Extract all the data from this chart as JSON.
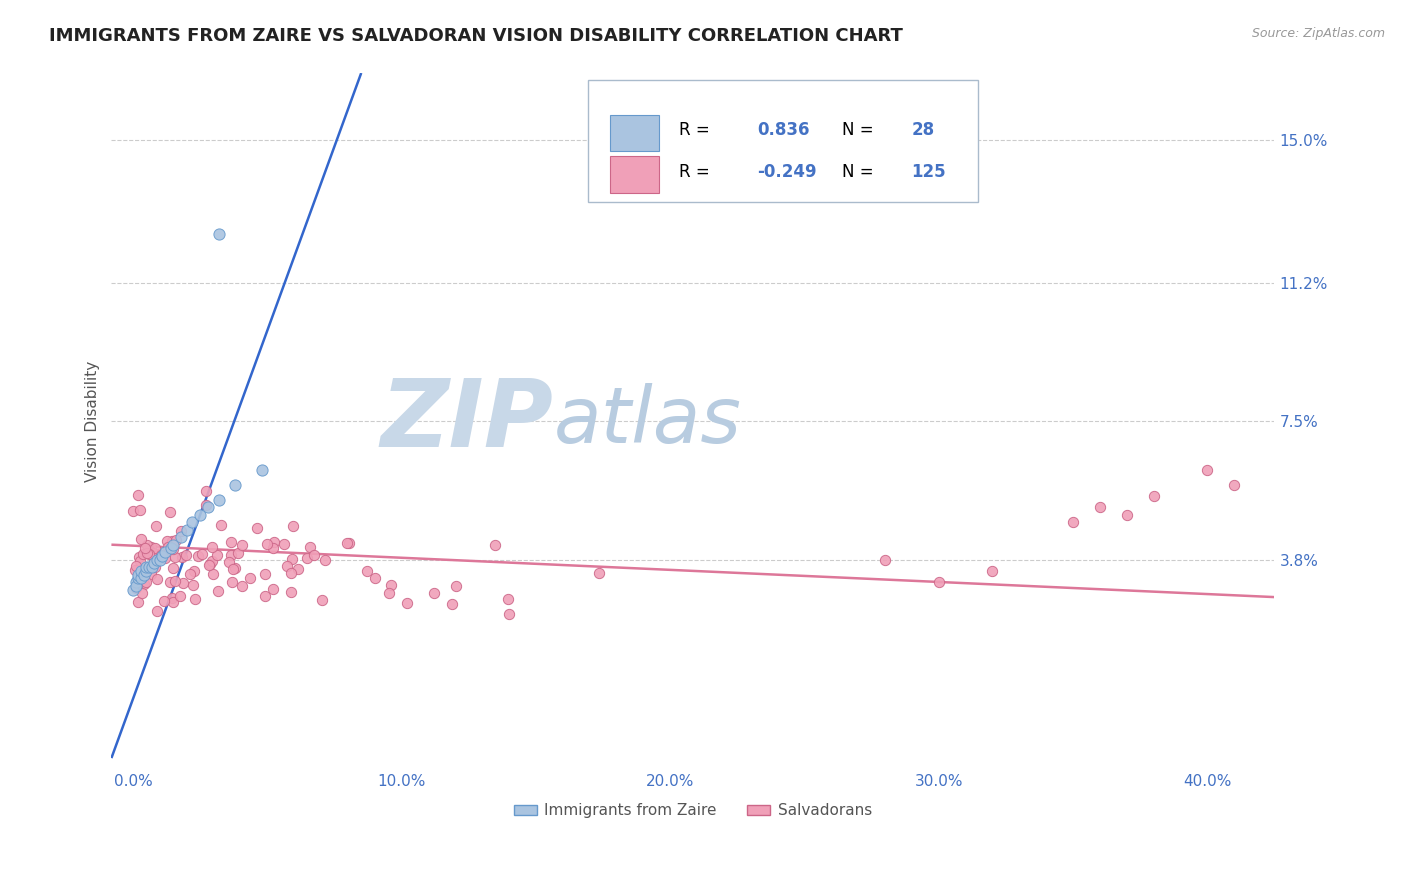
{
  "title": "IMMIGRANTS FROM ZAIRE VS SALVADORAN VISION DISABILITY CORRELATION CHART",
  "source": "Source: ZipAtlas.com",
  "ylabel": "Vision Disability",
  "x_ticks": [
    "0.0%",
    "10.0%",
    "20.0%",
    "30.0%",
    "40.0%"
  ],
  "x_tick_vals": [
    0.0,
    0.1,
    0.2,
    0.3,
    0.4
  ],
  "y_ticks": [
    "3.8%",
    "7.5%",
    "11.2%",
    "15.0%"
  ],
  "y_tick_vals": [
    0.038,
    0.075,
    0.112,
    0.15
  ],
  "xlim": [
    -0.008,
    0.425
  ],
  "ylim": [
    -0.018,
    0.168
  ],
  "zaire_color": "#aac4e0",
  "zaire_edge": "#6699cc",
  "salvadoran_color": "#f0a0b8",
  "salvadoran_edge": "#cc6688",
  "line_blue": "#3366cc",
  "line_pink": "#dd7799",
  "watermark_zip_color": "#c8d8e8",
  "watermark_atlas_color": "#b8cce0",
  "background": "#ffffff",
  "title_color": "#222222",
  "axis_label_color": "#555555",
  "tick_color": "#4472c4",
  "grid_color": "#cccccc",
  "legend_r_color": "#4472c4",
  "R_zaire": 0.836,
  "N_zaire": 28,
  "R_salv": -0.249,
  "N_salv": 125,
  "zaire_label": "Immigrants from Zaire",
  "salv_label": "Salvadorans",
  "blue_trend_x0": -0.008,
  "blue_trend_y0": -0.015,
  "blue_trend_x1": 0.085,
  "blue_trend_y1": 0.168,
  "pink_trend_x0": -0.008,
  "pink_trend_y0": 0.042,
  "pink_trend_x1": 0.425,
  "pink_trend_y1": 0.028
}
